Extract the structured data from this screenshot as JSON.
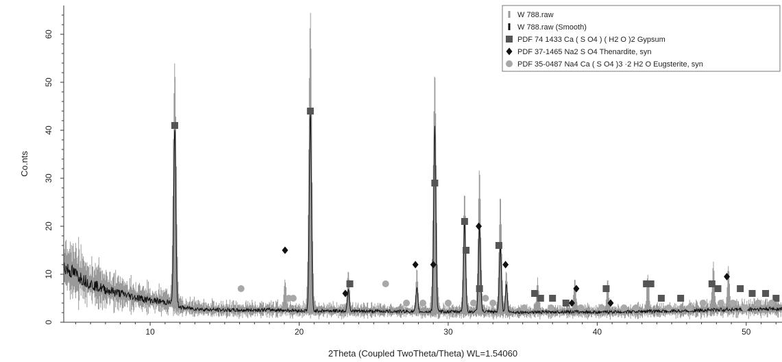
{
  "chart_data": {
    "type": "line",
    "title": "",
    "xlabel": "2Theta (Coupled TwoTheta/Theta) WL=1.54060",
    "ylabel": "Co.nts",
    "xlim": [
      4.2,
      52.4
    ],
    "ylim": [
      0,
      66
    ],
    "x_ticks": [
      10,
      20,
      30,
      40,
      50
    ],
    "y_ticks": [
      0,
      10,
      20,
      30,
      40,
      50,
      60
    ],
    "grid": false,
    "legend_position": "top-right",
    "raw_background": [
      [
        4.2,
        11.5
      ],
      [
        5,
        10
      ],
      [
        6,
        8
      ],
      [
        7,
        6.8
      ],
      [
        8,
        6
      ],
      [
        9,
        5.2
      ],
      [
        10,
        4.6
      ],
      [
        11,
        4.2
      ],
      [
        11.6,
        4.0
      ],
      [
        12.2,
        3.0
      ],
      [
        14,
        2.6
      ],
      [
        16,
        2.5
      ],
      [
        18,
        2.6
      ],
      [
        20,
        2.4
      ],
      [
        22,
        2.4
      ],
      [
        24,
        2.3
      ],
      [
        26,
        2.3
      ],
      [
        28,
        2.2
      ],
      [
        30,
        2.2
      ],
      [
        32,
        2.2
      ],
      [
        34,
        2.1
      ],
      [
        36,
        2.1
      ],
      [
        38,
        2.2
      ],
      [
        40,
        2.1
      ],
      [
        42,
        2.2
      ],
      [
        44,
        2.3
      ],
      [
        46,
        2.4
      ],
      [
        48,
        2.6
      ],
      [
        50,
        2.7
      ],
      [
        52.4,
        2.8
      ]
    ],
    "raw_peaks": [
      [
        11.65,
        52,
        0.14
      ],
      [
        19.05,
        8,
        0.1
      ],
      [
        20.75,
        63,
        0.14
      ],
      [
        23.3,
        10,
        0.1
      ],
      [
        27.9,
        10,
        0.1
      ],
      [
        29.1,
        51,
        0.14
      ],
      [
        31.1,
        26,
        0.12
      ],
      [
        32.1,
        31,
        0.12
      ],
      [
        33.5,
        25,
        0.12
      ],
      [
        33.9,
        10,
        0.1
      ],
      [
        36.0,
        8,
        0.1
      ],
      [
        38.5,
        8,
        0.1
      ],
      [
        40.7,
        8,
        0.1
      ],
      [
        43.4,
        9,
        0.1
      ],
      [
        47.8,
        11,
        0.1
      ],
      [
        48.8,
        10,
        0.1
      ]
    ],
    "smooth_peaks": [
      [
        11.65,
        41,
        0.1
      ],
      [
        20.75,
        44,
        0.1
      ],
      [
        23.3,
        7,
        0.09
      ],
      [
        27.9,
        7,
        0.09
      ],
      [
        29.1,
        41,
        0.1
      ],
      [
        31.1,
        21,
        0.1
      ],
      [
        32.1,
        20,
        0.1
      ],
      [
        33.5,
        16,
        0.1
      ],
      [
        33.9,
        8,
        0.09
      ]
    ],
    "series": [
      {
        "name": "W 788.raw",
        "marker": "tick",
        "color": "#9a9a9a"
      },
      {
        "name": "W 788.raw (Smooth)",
        "marker": "tick",
        "color": "#111111"
      },
      {
        "name": "PDF 74 1433 Ca ( S O4 ) ( H2 O )2 Gypsum",
        "marker": "square",
        "color": "#555555",
        "points": [
          [
            11.65,
            41
          ],
          [
            20.75,
            44
          ],
          [
            23.4,
            8
          ],
          [
            29.1,
            29
          ],
          [
            31.1,
            21
          ],
          [
            31.2,
            15
          ],
          [
            32.1,
            7
          ],
          [
            33.4,
            16
          ],
          [
            35.8,
            6
          ],
          [
            36.2,
            5
          ],
          [
            37.0,
            5
          ],
          [
            37.9,
            4
          ],
          [
            40.6,
            7
          ],
          [
            43.3,
            8
          ],
          [
            43.6,
            8
          ],
          [
            44.3,
            5
          ],
          [
            45.6,
            5
          ],
          [
            47.7,
            8
          ],
          [
            48.1,
            7
          ],
          [
            49.6,
            7
          ],
          [
            50.4,
            6
          ],
          [
            51.3,
            6
          ],
          [
            52.0,
            5
          ]
        ]
      },
      {
        "name": "PDF 37-1465 Na2 S O4 Thenardite, syn",
        "marker": "diamond",
        "color": "#111111",
        "points": [
          [
            19.05,
            15
          ],
          [
            23.1,
            6
          ],
          [
            27.8,
            12
          ],
          [
            29.0,
            12
          ],
          [
            32.05,
            20
          ],
          [
            33.85,
            12
          ],
          [
            38.3,
            4
          ],
          [
            38.6,
            7
          ],
          [
            40.9,
            4
          ],
          [
            48.7,
            9.5
          ]
        ]
      },
      {
        "name": "PDF 35-0487 Na4 Ca ( S O4 )3 ·2 H2 O Eugsterite, syn",
        "marker": "circle",
        "color": "#a8a8a8",
        "points": [
          [
            16.1,
            7
          ],
          [
            19.3,
            5
          ],
          [
            19.6,
            5
          ],
          [
            25.8,
            8
          ],
          [
            27.2,
            4
          ],
          [
            28.3,
            4
          ],
          [
            30.0,
            4
          ],
          [
            31.7,
            4
          ],
          [
            32.5,
            5
          ],
          [
            33.0,
            4
          ],
          [
            35.1,
            3
          ],
          [
            36.9,
            3
          ],
          [
            38.9,
            3
          ],
          [
            40.3,
            3
          ],
          [
            41.8,
            3
          ],
          [
            42.6,
            3
          ],
          [
            44.8,
            3
          ],
          [
            46.2,
            3
          ],
          [
            47.1,
            4
          ],
          [
            48.3,
            4
          ],
          [
            49.1,
            4
          ],
          [
            49.9,
            3
          ],
          [
            50.8,
            4
          ],
          [
            51.7,
            4
          ]
        ]
      }
    ]
  }
}
